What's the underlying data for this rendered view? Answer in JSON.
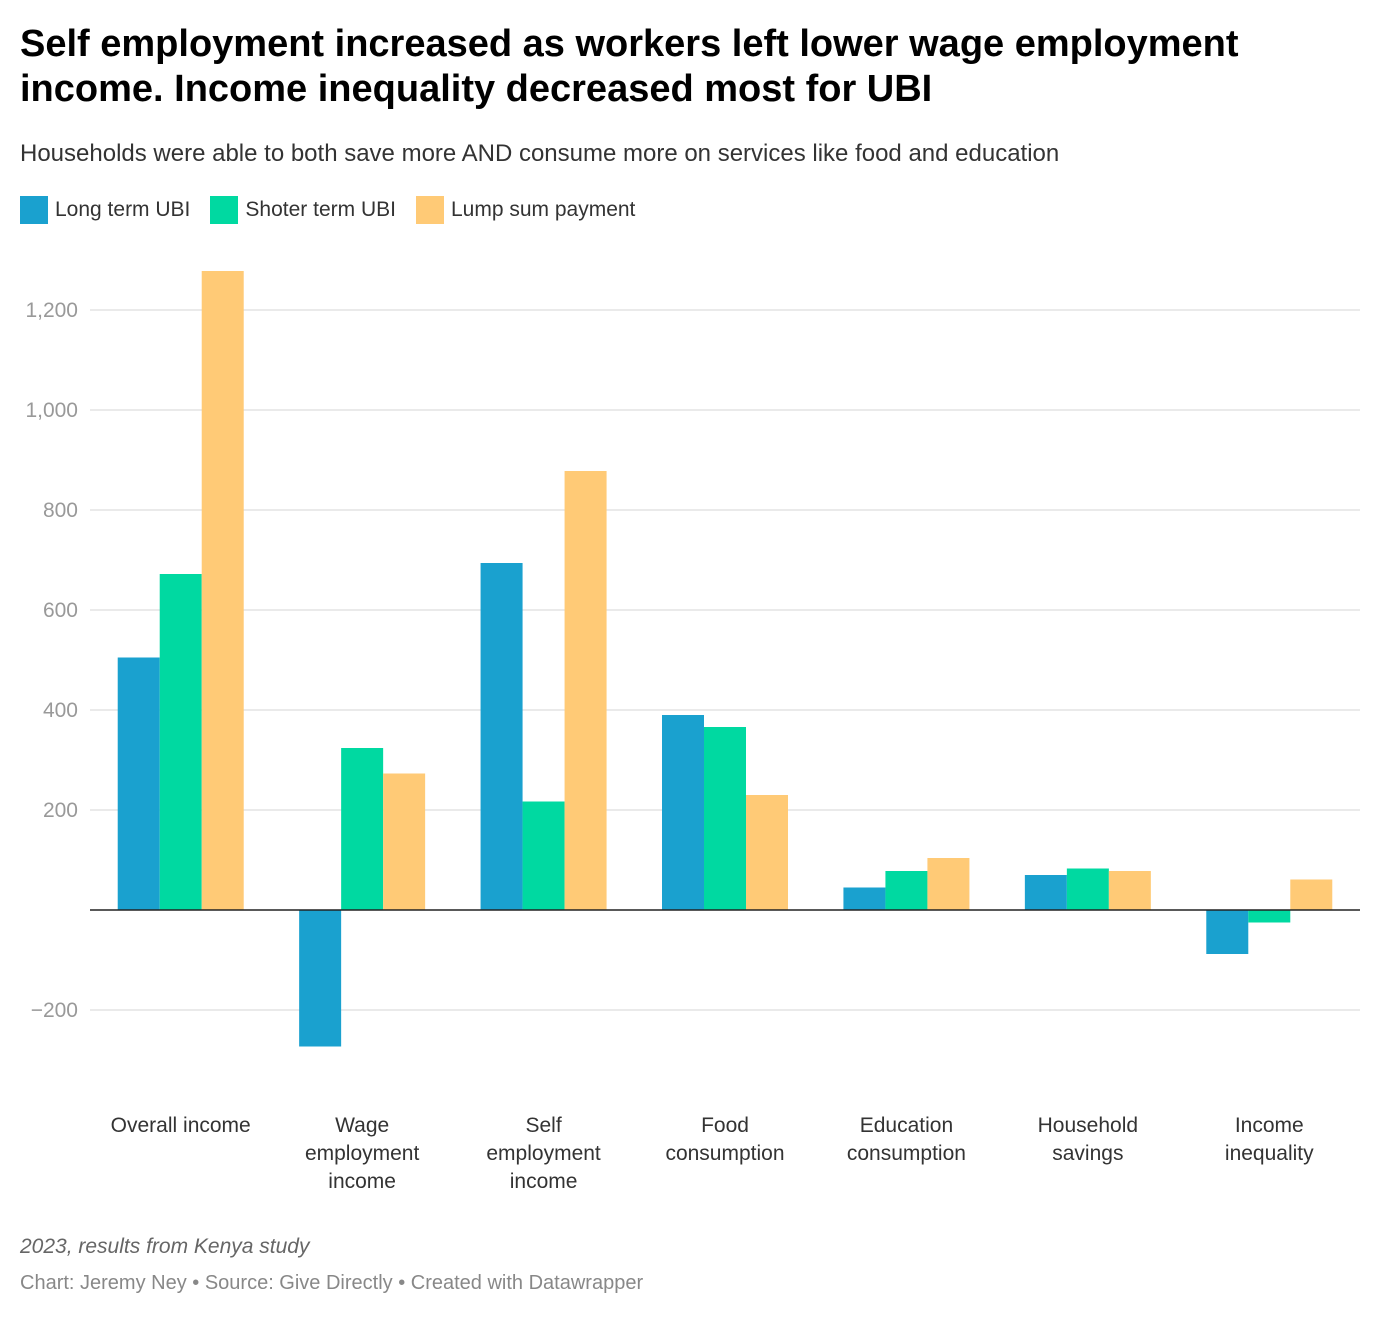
{
  "title": "Self employment increased as workers left lower wage employment income. Income inequality decreased most for UBI",
  "subtitle": "Households were able to both save more AND consume more on services like food and education",
  "legend": [
    {
      "label": "Long term UBI",
      "color": "#1aa1cf"
    },
    {
      "label": "Shoter term UBI",
      "color": "#00d9a1"
    },
    {
      "label": "Lump sum payment",
      "color": "#ffca76"
    }
  ],
  "notes": "2023, results from Kenya study",
  "footer": "Chart: Jeremy Ney • Source: Give Directly • Created with Datawrapper",
  "chart_data": {
    "type": "bar",
    "categories": [
      [
        "Overall income"
      ],
      [
        "Wage",
        "employment",
        "income"
      ],
      [
        "Self",
        "employment",
        "income"
      ],
      [
        "Food",
        "consumption"
      ],
      [
        "Education",
        "consumption"
      ],
      [
        "Household",
        "savings"
      ],
      [
        "Income",
        "inequality"
      ]
    ],
    "series": [
      {
        "name": "Long term UBI",
        "color": "#1aa1cf",
        "values": [
          505,
          -273,
          694,
          390,
          45,
          70,
          -88
        ]
      },
      {
        "name": "Shoter term UBI",
        "color": "#00d9a1",
        "values": [
          672,
          324,
          217,
          366,
          78,
          83,
          -25
        ]
      },
      {
        "name": "Lump sum payment",
        "color": "#ffca76",
        "values": [
          1278,
          273,
          878,
          230,
          104,
          78,
          61
        ]
      }
    ],
    "yticks": [
      -200,
      200,
      400,
      600,
      800,
      1000,
      1200
    ],
    "ytick_labels": [
      "−200",
      "200",
      "400",
      "600",
      "800",
      "1,000",
      "1,200"
    ],
    "ylim": [
      -330,
      1340
    ],
    "title": "",
    "xlabel": "",
    "ylabel": ""
  }
}
